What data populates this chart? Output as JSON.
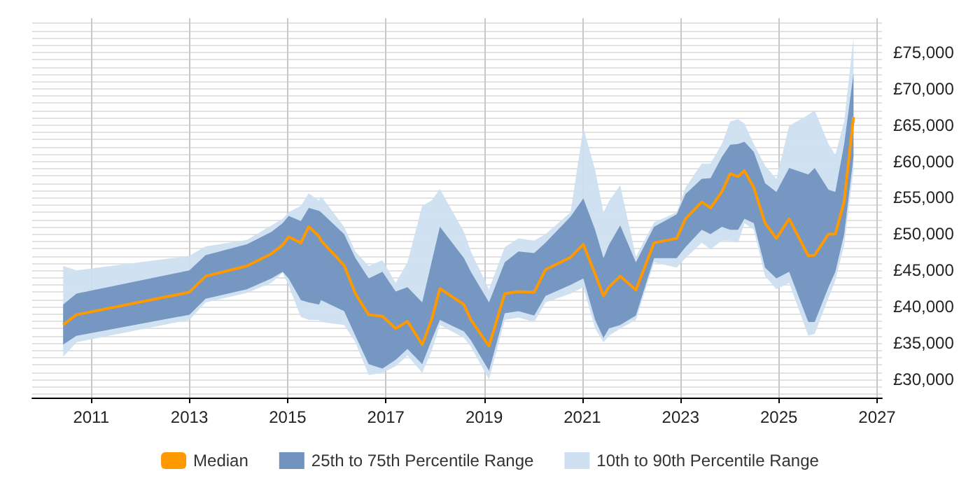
{
  "chart_data": {
    "type": "line",
    "x": [
      2010.43,
      2010.7,
      2013.0,
      2013.33,
      2014.17,
      2014.67,
      2014.9,
      2015.02,
      2015.27,
      2015.43,
      2015.64,
      2015.68,
      2016.15,
      2016.38,
      2016.65,
      2016.93,
      2017.2,
      2017.44,
      2017.74,
      2017.93,
      2018.1,
      2018.59,
      2018.73,
      2019.1,
      2019.42,
      2019.7,
      2020.02,
      2020.25,
      2020.76,
      2021.02,
      2021.26,
      2021.43,
      2021.54,
      2021.77,
      2022.09,
      2022.46,
      2022.92,
      2023.1,
      2023.43,
      2023.61,
      2023.84,
      2024.01,
      2024.17,
      2024.3,
      2024.49,
      2024.72,
      2024.95,
      2025.21,
      2025.6,
      2025.73,
      2026.01,
      2026.15,
      2026.33,
      2026.52
    ],
    "series": [
      {
        "name": "Median",
        "color": "#ff9900",
        "values": [
          37500,
          38900,
          42000,
          44200,
          45600,
          47300,
          48500,
          49600,
          48800,
          51000,
          49700,
          49100,
          45700,
          41800,
          38900,
          38700,
          37000,
          38000,
          34800,
          38200,
          42500,
          40300,
          38200,
          34600,
          41800,
          42100,
          42000,
          45100,
          46800,
          48600,
          44500,
          41500,
          42700,
          44200,
          42300,
          48800,
          49400,
          52100,
          54400,
          53600,
          55800,
          58300,
          57900,
          58700,
          56400,
          51500,
          49400,
          52100,
          47000,
          47100,
          50000,
          50000,
          54500,
          66100
        ]
      },
      {
        "name": "25th to 75th Percentile Range",
        "type": "area",
        "color": "#7092be",
        "lower": [
          34800,
          36000,
          38900,
          41100,
          42400,
          43900,
          44800,
          43900,
          40900,
          40600,
          40300,
          40900,
          39400,
          36000,
          32100,
          31500,
          32700,
          34200,
          32100,
          35400,
          38200,
          36600,
          35400,
          31200,
          39100,
          39400,
          38800,
          41500,
          43000,
          43900,
          38200,
          35700,
          37000,
          37500,
          38800,
          46700,
          46700,
          48200,
          50600,
          50000,
          51000,
          50600,
          50600,
          52100,
          51500,
          45400,
          43900,
          44800,
          37900,
          37900,
          42700,
          44800,
          50000,
          60600
        ],
        "values": [
          null,
          null,
          null,
          null,
          null,
          null,
          null,
          null,
          null,
          null,
          null,
          null,
          null,
          null,
          null,
          null,
          null,
          null,
          null,
          null,
          null,
          null,
          null,
          null,
          null,
          null,
          null,
          null,
          null,
          null,
          null,
          null,
          null,
          null,
          null,
          null,
          null,
          null,
          null,
          null,
          null,
          null,
          null,
          null,
          null,
          null,
          null,
          null,
          null,
          null,
          null,
          null,
          null,
          null
        ],
        "upper": [
          40300,
          41800,
          45000,
          47100,
          48600,
          50300,
          51500,
          52500,
          51800,
          53600,
          53200,
          53000,
          50000,
          46700,
          43900,
          44800,
          42100,
          42700,
          40600,
          46100,
          51000,
          46700,
          44800,
          40600,
          46100,
          47600,
          47400,
          48800,
          52400,
          54900,
          50600,
          46700,
          48500,
          51200,
          46100,
          51000,
          52700,
          55500,
          57600,
          57700,
          60600,
          62300,
          62400,
          62700,
          61300,
          57000,
          55800,
          59100,
          58200,
          59100,
          56100,
          55800,
          62400,
          72100
        ]
      },
      {
        "name": "10th to 90th Percentile Range",
        "type": "area",
        "color": "#cddff0",
        "lower": [
          33100,
          35100,
          38200,
          40600,
          41900,
          43300,
          44700,
          42900,
          38600,
          38200,
          38200,
          37900,
          37500,
          35100,
          30600,
          30900,
          31800,
          33300,
          30900,
          33900,
          37500,
          35700,
          34500,
          30000,
          38200,
          38500,
          37900,
          40600,
          41800,
          42700,
          37000,
          35100,
          36000,
          37000,
          38200,
          46100,
          45400,
          46700,
          48800,
          47900,
          49100,
          49100,
          48800,
          51500,
          50600,
          44200,
          42400,
          43300,
          36000,
          36300,
          41200,
          43600,
          48500,
          58800
        ],
        "values": [
          null,
          null,
          null,
          null,
          null,
          null,
          null,
          null,
          null,
          null,
          null,
          null,
          null,
          null,
          null,
          null,
          null,
          null,
          null,
          null,
          null,
          null,
          null,
          null,
          null,
          null,
          null,
          null,
          null,
          null,
          null,
          null,
          null,
          null,
          null,
          null,
          null,
          null,
          null,
          null,
          null,
          null,
          null,
          null,
          null,
          null,
          null,
          null,
          null,
          null,
          null,
          null,
          null,
          null
        ],
        "upper": [
          45600,
          45000,
          47000,
          48300,
          49200,
          51200,
          52100,
          53000,
          53900,
          55600,
          54600,
          55200,
          51000,
          47600,
          45600,
          46400,
          43300,
          46100,
          53900,
          54600,
          56200,
          50300,
          47600,
          42400,
          48200,
          49400,
          49100,
          50000,
          53000,
          64600,
          58800,
          53000,
          54500,
          56700,
          46900,
          51600,
          53000,
          56400,
          59700,
          59700,
          62400,
          65500,
          65800,
          65200,
          62400,
          59400,
          57600,
          64900,
          66400,
          67000,
          62400,
          60900,
          65500,
          77000
        ]
      }
    ],
    "xlim": [
      2009.8,
      2027.1
    ],
    "xticks": [
      2011,
      2013,
      2015,
      2017,
      2019,
      2021,
      2023,
      2025,
      2027
    ],
    "ylim": [
      27500,
      79700
    ],
    "yticks": [
      {
        "value": 28000,
        "label": null
      },
      {
        "value": 29000,
        "label": null
      },
      {
        "value": 30000,
        "label": "£30,000"
      },
      {
        "value": 31000,
        "label": null
      },
      {
        "value": 32000,
        "label": null
      },
      {
        "value": 33000,
        "label": null
      },
      {
        "value": 34000,
        "label": null
      },
      {
        "value": 35000,
        "label": "£35,000"
      },
      {
        "value": 36000,
        "label": null
      },
      {
        "value": 37000,
        "label": null
      },
      {
        "value": 38000,
        "label": null
      },
      {
        "value": 39000,
        "label": null
      },
      {
        "value": 40000,
        "label": "£40,000"
      },
      {
        "value": 41000,
        "label": null
      },
      {
        "value": 42000,
        "label": null
      },
      {
        "value": 43000,
        "label": null
      },
      {
        "value": 44000,
        "label": null
      },
      {
        "value": 45000,
        "label": "£45,000"
      },
      {
        "value": 46000,
        "label": null
      },
      {
        "value": 47000,
        "label": null
      },
      {
        "value": 48000,
        "label": null
      },
      {
        "value": 49000,
        "label": null
      },
      {
        "value": 50000,
        "label": "£50,000"
      },
      {
        "value": 51000,
        "label": null
      },
      {
        "value": 52000,
        "label": null
      },
      {
        "value": 53000,
        "label": null
      },
      {
        "value": 54000,
        "label": null
      },
      {
        "value": 55000,
        "label": "£55,000"
      },
      {
        "value": 56000,
        "label": null
      },
      {
        "value": 57000,
        "label": null
      },
      {
        "value": 58000,
        "label": null
      },
      {
        "value": 59000,
        "label": null
      },
      {
        "value": 60000,
        "label": "£60,000"
      },
      {
        "value": 61000,
        "label": null
      },
      {
        "value": 62000,
        "label": null
      },
      {
        "value": 63000,
        "label": null
      },
      {
        "value": 64000,
        "label": null
      },
      {
        "value": 65000,
        "label": "£65,000"
      },
      {
        "value": 66000,
        "label": null
      },
      {
        "value": 67000,
        "label": null
      },
      {
        "value": 68000,
        "label": null
      },
      {
        "value": 69000,
        "label": null
      },
      {
        "value": 70000,
        "label": "£70,000"
      },
      {
        "value": 71000,
        "label": null
      },
      {
        "value": 72000,
        "label": null
      },
      {
        "value": 73000,
        "label": null
      },
      {
        "value": 74000,
        "label": null
      },
      {
        "value": 75000,
        "label": "£75,000"
      },
      {
        "value": 76000,
        "label": null
      },
      {
        "value": 77000,
        "label": null
      },
      {
        "value": 78000,
        "label": null
      },
      {
        "value": 79000,
        "label": null
      }
    ],
    "grid": true,
    "legend": "bottom",
    "marker": "none",
    "line_style": "solid"
  }
}
